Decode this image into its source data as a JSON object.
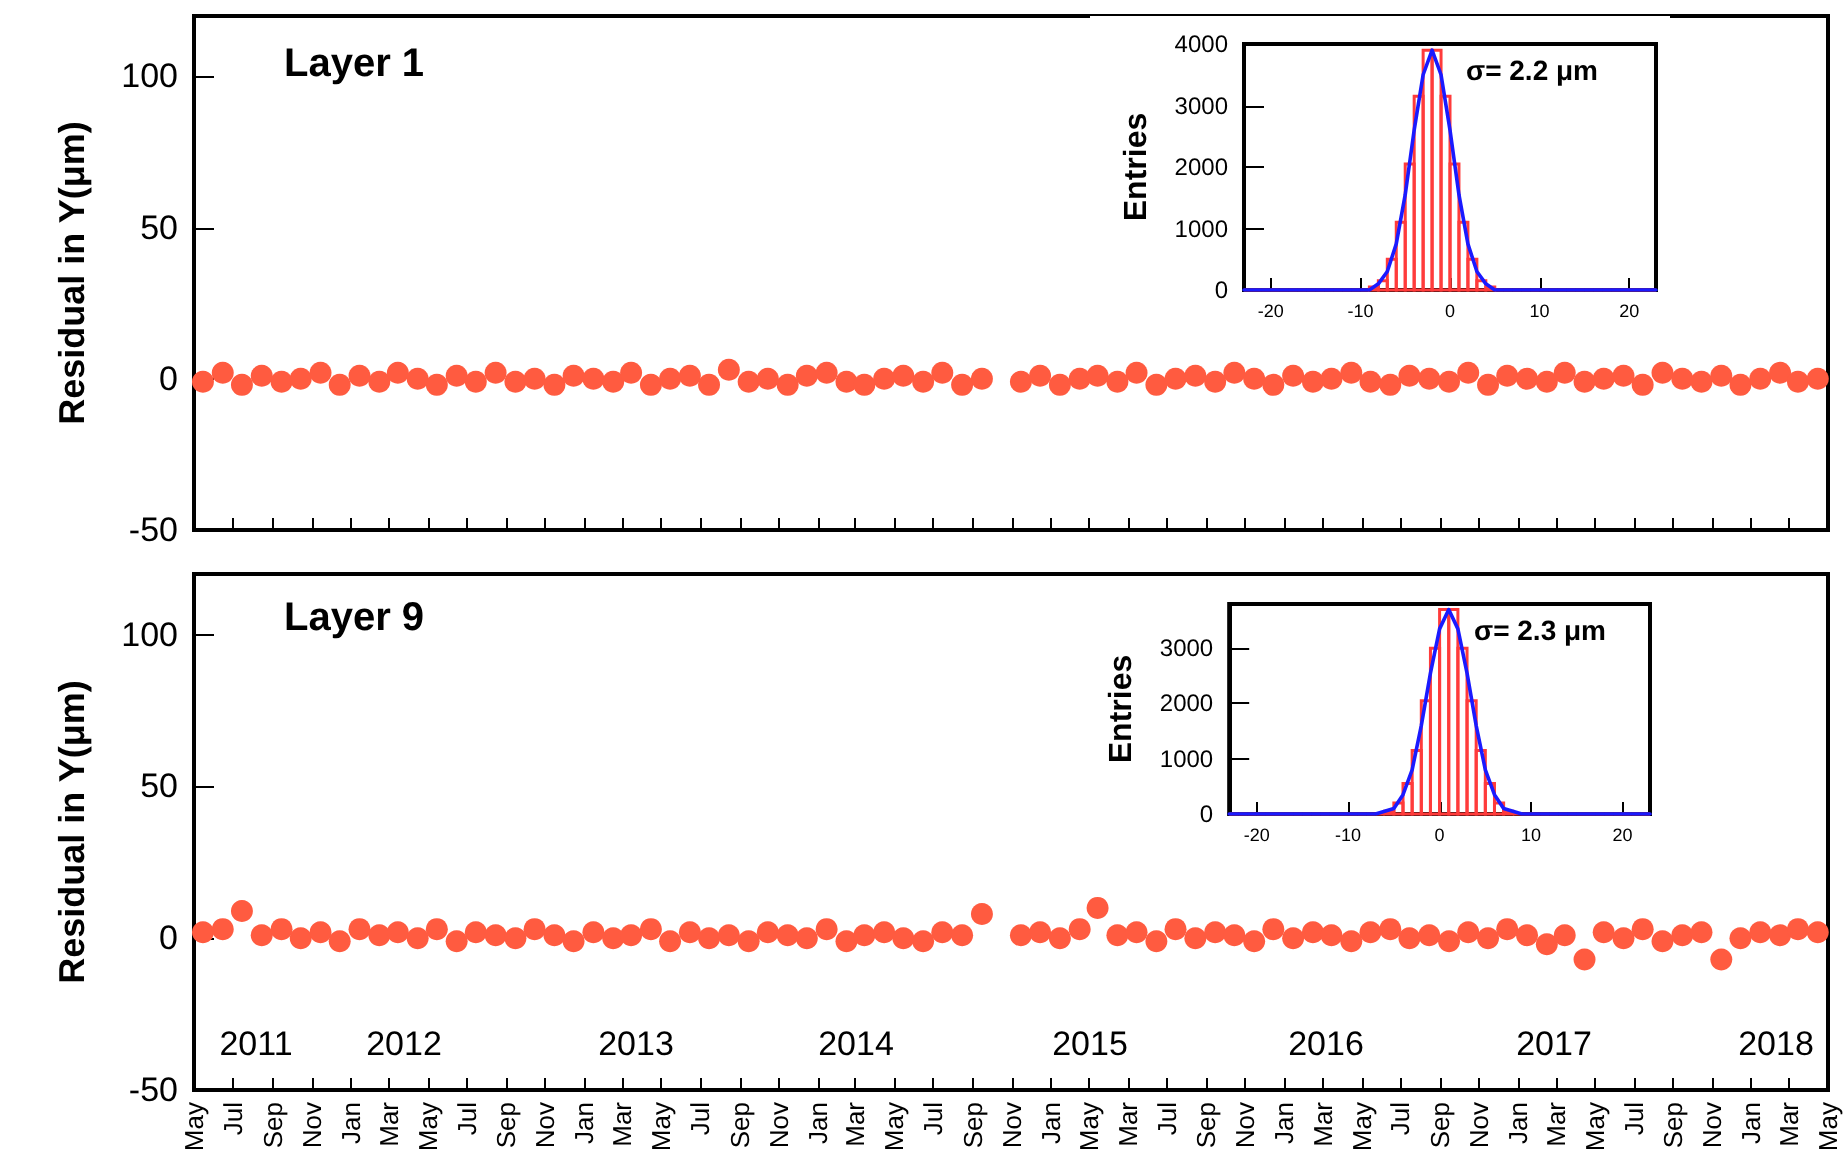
{
  "chart_data": [
    {
      "type": "scatter",
      "ylabel": "Residual in Y(μm)",
      "annotations": [
        "Layer 1"
      ],
      "marker": "circle",
      "tick_labels": "y",
      "xlim": [
        "2011-05",
        "2018-05"
      ],
      "ylim": [
        -50,
        120
      ],
      "yticks": [
        -50,
        0,
        50,
        100
      ],
      "xticks": [
        {
          "value": "2011-05",
          "label": null
        },
        {
          "value": "2011-07",
          "label": null
        },
        {
          "value": "2011-09",
          "label": null
        },
        {
          "value": "2011-11",
          "label": null
        },
        {
          "value": "2012-01",
          "label": null
        },
        {
          "value": "2012-03",
          "label": null
        },
        {
          "value": "2012-05",
          "label": null
        },
        {
          "value": "2012-07",
          "label": null
        },
        {
          "value": "2012-09",
          "label": null
        },
        {
          "value": "2012-11",
          "label": null
        },
        {
          "value": "2013-01",
          "label": null
        },
        {
          "value": "2013-03",
          "label": null
        },
        {
          "value": "2013-05",
          "label": null
        },
        {
          "value": "2013-07",
          "label": null
        },
        {
          "value": "2013-09",
          "label": null
        },
        {
          "value": "2013-11",
          "label": null
        },
        {
          "value": "2014-01",
          "label": null
        },
        {
          "value": "2014-03",
          "label": null
        },
        {
          "value": "2014-05",
          "label": null
        },
        {
          "value": "2014-07",
          "label": null
        },
        {
          "value": "2014-09",
          "label": null
        },
        {
          "value": "2014-11",
          "label": null
        },
        {
          "value": "2015-01",
          "label": null
        },
        {
          "value": "2015-03",
          "label": null
        },
        {
          "value": "2015-05",
          "label": null
        },
        {
          "value": "2015-07",
          "label": null
        },
        {
          "value": "2015-09",
          "label": null
        },
        {
          "value": "2015-11",
          "label": null
        },
        {
          "value": "2016-01",
          "label": null
        },
        {
          "value": "2016-03",
          "label": null
        },
        {
          "value": "2016-05",
          "label": null
        },
        {
          "value": "2016-07",
          "label": null
        },
        {
          "value": "2016-09",
          "label": null
        },
        {
          "value": "2016-11",
          "label": null
        },
        {
          "value": "2017-01",
          "label": null
        },
        {
          "value": "2017-03",
          "label": null
        },
        {
          "value": "2017-05",
          "label": null
        },
        {
          "value": "2017-07",
          "label": null
        },
        {
          "value": "2017-09",
          "label": null
        },
        {
          "value": "2017-11",
          "label": null
        },
        {
          "value": "2018-01",
          "label": null
        },
        {
          "value": "2018-03",
          "label": null
        },
        {
          "value": "2018-05",
          "label": null
        }
      ],
      "x": [
        "2011-05-15",
        "2011-06-15",
        "2011-07-15",
        "2011-08-15",
        "2011-09-15",
        "2011-10-15",
        "2011-11-15",
        "2011-12-15",
        "2012-01-15",
        "2012-02-15",
        "2012-03-15",
        "2012-04-15",
        "2012-05-15",
        "2012-06-15",
        "2012-07-15",
        "2012-08-15",
        "2012-09-15",
        "2012-10-15",
        "2012-11-15",
        "2012-12-15",
        "2013-01-15",
        "2013-02-15",
        "2013-03-15",
        "2013-04-15",
        "2013-05-15",
        "2013-06-15",
        "2013-07-15",
        "2013-08-15",
        "2013-09-15",
        "2013-10-15",
        "2013-11-15",
        "2013-12-15",
        "2014-01-15",
        "2014-02-15",
        "2014-03-15",
        "2014-04-15",
        "2014-05-15",
        "2014-06-15",
        "2014-07-15",
        "2014-08-15",
        "2014-09-15",
        "2014-11-15",
        "2014-12-15",
        "2015-01-15",
        "2015-02-15",
        "2015-03-15",
        "2015-04-15",
        "2015-05-15",
        "2015-06-15",
        "2015-07-15",
        "2015-08-15",
        "2015-09-15",
        "2015-10-15",
        "2015-11-15",
        "2015-12-15",
        "2016-01-15",
        "2016-02-15",
        "2016-03-15",
        "2016-04-15",
        "2016-05-15",
        "2016-06-15",
        "2016-07-15",
        "2016-08-15",
        "2016-09-15",
        "2016-10-15",
        "2016-11-15",
        "2016-12-15",
        "2017-01-15",
        "2017-02-15",
        "2017-03-15",
        "2017-04-15",
        "2017-05-15",
        "2017-06-15",
        "2017-07-15",
        "2017-08-15",
        "2017-09-15",
        "2017-10-15",
        "2017-11-15",
        "2017-12-15",
        "2018-01-15",
        "2018-02-15",
        "2018-03-15",
        "2018-04-15"
      ],
      "series": [
        {
          "color": "#ff5b40",
          "values": [
            -1,
            2,
            -2,
            1,
            -1,
            0,
            2,
            -2,
            1,
            -1,
            2,
            0,
            -2,
            1,
            -1,
            2,
            -1,
            0,
            -2,
            1,
            0,
            -1,
            2,
            -2,
            0,
            1,
            -2,
            3,
            -1,
            0,
            -2,
            1,
            2,
            -1,
            -2,
            0,
            1,
            -1,
            2,
            -2,
            0,
            -1,
            1,
            -2,
            0,
            1,
            -1,
            2,
            -2,
            0,
            1,
            -1,
            2,
            0,
            -2,
            1,
            -1,
            0,
            2,
            -1,
            -2,
            1,
            0,
            -1,
            2,
            -2,
            1,
            0,
            -1,
            2,
            -1,
            0,
            1,
            -2,
            2,
            0,
            -1,
            1,
            -2,
            0,
            2,
            -1,
            0
          ]
        }
      ]
    },
    {
      "type": "histogram",
      "ylabel": "Entries",
      "annotations": [
        "σ= 2.2 μm"
      ],
      "xlim": [
        -23,
        23
      ],
      "xticks": [
        -20,
        -10,
        0,
        10,
        20
      ],
      "ylim": [
        0,
        4000
      ],
      "yticks": [
        0,
        1000,
        2000,
        3000,
        4000
      ],
      "bins": [
        -23,
        -22,
        -21,
        -20,
        -19,
        -18,
        -17,
        -16,
        -15,
        -14,
        -13,
        -12,
        -11,
        -10,
        -9,
        -8,
        -7,
        -6,
        -5,
        -4,
        -3,
        -2,
        -1,
        0,
        1,
        2,
        3,
        4,
        5,
        6,
        7,
        8,
        9,
        10,
        11,
        12,
        13,
        14,
        15,
        16,
        17,
        18,
        19,
        20,
        21,
        22,
        23
      ],
      "series": [
        {
          "color": "#ff3b3b",
          "values": [
            0,
            0,
            0,
            0,
            0,
            0,
            0,
            0,
            0,
            0,
            0,
            0,
            0,
            0,
            50,
            150,
            500,
            1100,
            2050,
            3150,
            3900,
            3900,
            3150,
            2050,
            1100,
            500,
            150,
            50,
            0,
            0,
            0,
            0,
            0,
            0,
            0,
            0,
            0,
            0,
            0,
            0,
            0,
            0,
            0,
            0,
            0,
            0
          ]
        },
        {
          "type": "line",
          "color": "#1a1aff",
          "x": [
            -23,
            -10,
            -9,
            -8,
            -7,
            -6,
            -5,
            -4,
            -3,
            -2,
            -1,
            0,
            1,
            2,
            3,
            4,
            5,
            6,
            23
          ],
          "values": [
            0,
            0,
            0,
            100,
            300,
            750,
            1550,
            2600,
            3500,
            3900,
            3500,
            2600,
            1550,
            750,
            300,
            100,
            0,
            0,
            0
          ]
        }
      ]
    },
    {
      "type": "histogram",
      "ylabel": "Entries",
      "annotations": [
        "σ= 2.3 μm"
      ],
      "xlim": [
        -23,
        23
      ],
      "xticks": [
        -20,
        -10,
        0,
        10,
        20
      ],
      "ylim": [
        0,
        3800
      ],
      "yticks": [
        0,
        1000,
        2000,
        3000
      ],
      "bins": [
        -23,
        -22,
        -21,
        -20,
        -19,
        -18,
        -17,
        -16,
        -15,
        -14,
        -13,
        -12,
        -11,
        -10,
        -9,
        -8,
        -7,
        -6,
        -5,
        -4,
        -3,
        -2,
        -1,
        0,
        1,
        2,
        3,
        4,
        5,
        6,
        7,
        8,
        9,
        10,
        11,
        12,
        13,
        14,
        15,
        16,
        17,
        18,
        19,
        20,
        21,
        22,
        23
      ],
      "series": [
        {
          "color": "#ff3b3b",
          "values": [
            0,
            0,
            0,
            0,
            0,
            0,
            0,
            0,
            0,
            0,
            0,
            0,
            0,
            0,
            0,
            0,
            0,
            50,
            200,
            550,
            1150,
            2050,
            3000,
            3700,
            3700,
            3000,
            2050,
            1150,
            550,
            200,
            50,
            0,
            0,
            0,
            0,
            0,
            0,
            0,
            0,
            0,
            0,
            0,
            0,
            0,
            0,
            0
          ]
        },
        {
          "type": "line",
          "color": "#1a1aff",
          "x": [
            -23,
            -8,
            -7,
            -6,
            -5,
            -4,
            -3,
            -2,
            -1,
            0,
            1,
            2,
            3,
            4,
            5,
            6,
            7,
            8,
            9,
            10,
            23
          ],
          "values": [
            0,
            0,
            0,
            50,
            100,
            350,
            800,
            1600,
            2550,
            3350,
            3700,
            3350,
            2550,
            1600,
            800,
            350,
            100,
            50,
            0,
            0,
            0
          ]
        }
      ]
    },
    {
      "type": "scatter",
      "ylabel": "Residual in Y(μm)",
      "marker": "circle",
      "annotations": [
        "Layer 9",
        "2011",
        "2012",
        "2013",
        "2014",
        "2015",
        "2016",
        "2017",
        "2018",
        "May",
        "Mar"
      ],
      "xlim": [
        "2011-05",
        "2018-05"
      ],
      "ylim": [
        -50,
        120
      ],
      "yticks": [
        -50,
        0,
        50,
        100
      ],
      "xticks": [
        {
          "value": "2011-05",
          "label": "May"
        },
        {
          "value": "2011-07",
          "label": "Jul"
        },
        {
          "value": "2011-09",
          "label": "Sep"
        },
        {
          "value": "2011-11",
          "label": "Nov"
        },
        {
          "value": "2012-01",
          "label": "Jan"
        },
        {
          "value": "2012-03",
          "label": "Mar"
        },
        {
          "value": "2012-05",
          "label": "May"
        },
        {
          "value": "2012-07",
          "label": "Jul"
        },
        {
          "value": "2012-09",
          "label": "Sep"
        },
        {
          "value": "2012-11",
          "label": "Nov"
        },
        {
          "value": "2013-01",
          "label": "Jan"
        },
        {
          "value": "2013-03",
          "label": "Mar"
        },
        {
          "value": "2013-05",
          "label": "May"
        },
        {
          "value": "2013-07",
          "label": "Jul"
        },
        {
          "value": "2013-09",
          "label": "Sep"
        },
        {
          "value": "2013-11",
          "label": "Nov"
        },
        {
          "value": "2014-01",
          "label": "Jan"
        },
        {
          "value": "2014-03",
          "label": "Mar"
        },
        {
          "value": "2014-05",
          "label": "May"
        },
        {
          "value": "2014-07",
          "label": "Jul"
        },
        {
          "value": "2014-09",
          "label": "Sep"
        },
        {
          "value": "2014-11",
          "label": "Nov"
        },
        {
          "value": "2015-01",
          "label": "Jan"
        },
        {
          "value": "2015-03",
          "label": null
        },
        {
          "value": "2015-05",
          "label": null
        },
        {
          "value": "2015-07",
          "label": "Jul"
        },
        {
          "value": "2015-09",
          "label": "Sep"
        },
        {
          "value": "2015-11",
          "label": "Nov"
        },
        {
          "value": "2016-01",
          "label": "Jan"
        },
        {
          "value": "2016-03",
          "label": "Mar"
        },
        {
          "value": "2016-05",
          "label": "May"
        },
        {
          "value": "2016-07",
          "label": "Jul"
        },
        {
          "value": "2016-09",
          "label": "Sep"
        },
        {
          "value": "2016-11",
          "label": "Nov"
        },
        {
          "value": "2017-01",
          "label": "Jan"
        },
        {
          "value": "2017-03",
          "label": "Mar"
        },
        {
          "value": "2017-05",
          "label": "May"
        },
        {
          "value": "2017-07",
          "label": "Jul"
        },
        {
          "value": "2017-09",
          "label": "Sep"
        },
        {
          "value": "2017-11",
          "label": "Nov"
        },
        {
          "value": "2018-01",
          "label": "Jan"
        },
        {
          "value": "2018-03",
          "label": "Mar"
        },
        {
          "value": "2018-05",
          "label": "May"
        }
      ],
      "x": [
        "2011-05-15",
        "2011-06-15",
        "2011-07-15",
        "2011-08-15",
        "2011-09-15",
        "2011-10-15",
        "2011-11-15",
        "2011-12-15",
        "2012-01-15",
        "2012-02-15",
        "2012-03-15",
        "2012-04-15",
        "2012-05-15",
        "2012-06-15",
        "2012-07-15",
        "2012-08-15",
        "2012-09-15",
        "2012-10-15",
        "2012-11-15",
        "2012-12-15",
        "2013-01-15",
        "2013-02-15",
        "2013-03-15",
        "2013-04-15",
        "2013-05-15",
        "2013-06-15",
        "2013-07-15",
        "2013-08-15",
        "2013-09-15",
        "2013-10-15",
        "2013-11-15",
        "2013-12-15",
        "2014-01-15",
        "2014-02-15",
        "2014-03-15",
        "2014-04-15",
        "2014-05-15",
        "2014-06-15",
        "2014-07-15",
        "2014-08-15",
        "2014-09-15",
        "2014-11-15",
        "2014-12-15",
        "2015-01-15",
        "2015-02-15",
        "2015-03-15",
        "2015-04-15",
        "2015-05-15",
        "2015-06-15",
        "2015-07-15",
        "2015-08-15",
        "2015-09-15",
        "2015-10-15",
        "2015-11-15",
        "2015-12-15",
        "2016-01-15",
        "2016-02-15",
        "2016-03-15",
        "2016-04-15",
        "2016-05-15",
        "2016-06-15",
        "2016-07-15",
        "2016-08-15",
        "2016-09-15",
        "2016-10-15",
        "2016-11-15",
        "2016-12-15",
        "2017-01-15",
        "2017-02-15",
        "2017-03-15",
        "2017-04-15",
        "2017-05-15",
        "2017-06-15",
        "2017-07-15",
        "2017-08-15",
        "2017-09-15",
        "2017-10-15",
        "2017-11-15",
        "2017-12-15",
        "2018-01-15",
        "2018-02-15",
        "2018-03-15",
        "2018-04-15"
      ],
      "series": [
        {
          "color": "#ff5b40",
          "values": [
            2,
            3,
            9,
            1,
            3,
            0,
            2,
            -1,
            3,
            1,
            2,
            0,
            3,
            -1,
            2,
            1,
            0,
            3,
            1,
            -1,
            2,
            0,
            1,
            3,
            -1,
            2,
            0,
            1,
            -1,
            2,
            1,
            0,
            3,
            -1,
            1,
            2,
            0,
            -1,
            2,
            1,
            8,
            1,
            2,
            0,
            3,
            10,
            1,
            2,
            -1,
            3,
            0,
            2,
            1,
            -1,
            3,
            0,
            2,
            1,
            -1,
            2,
            3,
            0,
            1,
            -1,
            2,
            0,
            3,
            1,
            -2,
            1,
            -7,
            2,
            0,
            3,
            -1,
            1,
            2,
            -7,
            0,
            2,
            1,
            3,
            2
          ]
        }
      ]
    }
  ]
}
